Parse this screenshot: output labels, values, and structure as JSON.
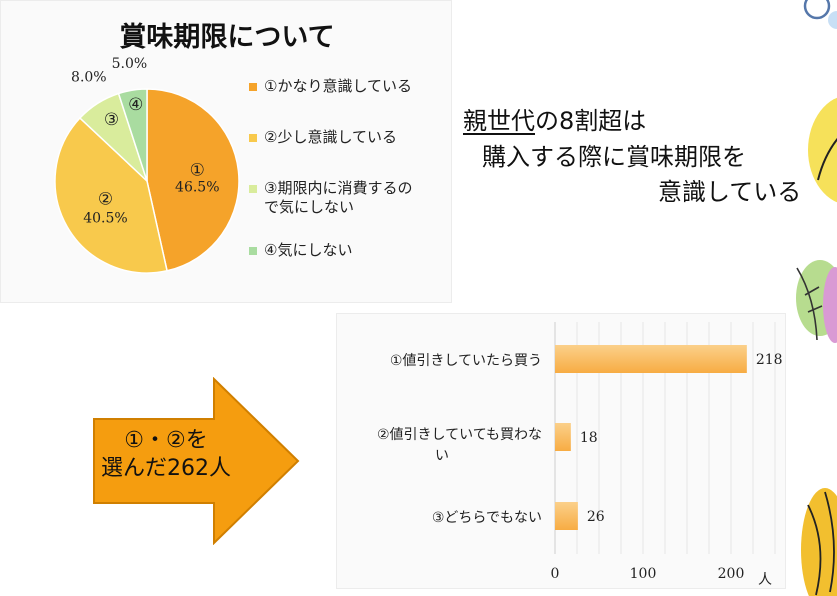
{
  "headline": {
    "line1_underlined": "親世代",
    "line1_rest": "の8割超は",
    "line2": "購入する際に賞味期限を",
    "line3": "意識している"
  },
  "arrow": {
    "line1": "①・②を",
    "line2": "選んだ262人"
  },
  "colors": {
    "pie": [
      "#f5a32a",
      "#f8c94c",
      "#d9ec9c",
      "#a9dca0"
    ],
    "bar": "#f7ac43",
    "arrow_fill": "#f59d0f",
    "arrow_stroke": "#d07f00"
  },
  "chart_data": [
    {
      "type": "pie",
      "title": "賞味期限について",
      "slices": [
        {
          "name": "①かなり意識している",
          "marker": "①",
          "value": 46.5,
          "label": "46.5%"
        },
        {
          "name": "②少し意識している",
          "marker": "②",
          "value": 40.5,
          "label": "40.5%"
        },
        {
          "name": "③期限内に消費するので気にしない",
          "marker": "③",
          "value": 8.0,
          "label": "8.0%"
        },
        {
          "name": "④気にしない",
          "marker": "④",
          "value": 5.0,
          "label": "5.0%"
        }
      ],
      "legend_lines": [
        [
          "①かなり意識している"
        ],
        [
          "②少し意識している"
        ],
        [
          "③期限内に消費するの",
          "で気にしない"
        ],
        [
          "④気にしない"
        ]
      ],
      "legend_position": "right"
    },
    {
      "type": "bar",
      "orientation": "horizontal",
      "categories": [
        "①値引きしていたら買う",
        "②値引きしていても買わない",
        "③どちらでもない"
      ],
      "category_lines": [
        [
          "①値引きしていたら買う"
        ],
        [
          "②値引きしていても買わな",
          "い"
        ],
        [
          "③どちらでもない"
        ]
      ],
      "values": [
        218,
        18,
        26
      ],
      "xlim": [
        0,
        250
      ],
      "xticks": [
        0,
        100,
        200
      ],
      "xunit": "人",
      "grid": "vertical"
    }
  ]
}
